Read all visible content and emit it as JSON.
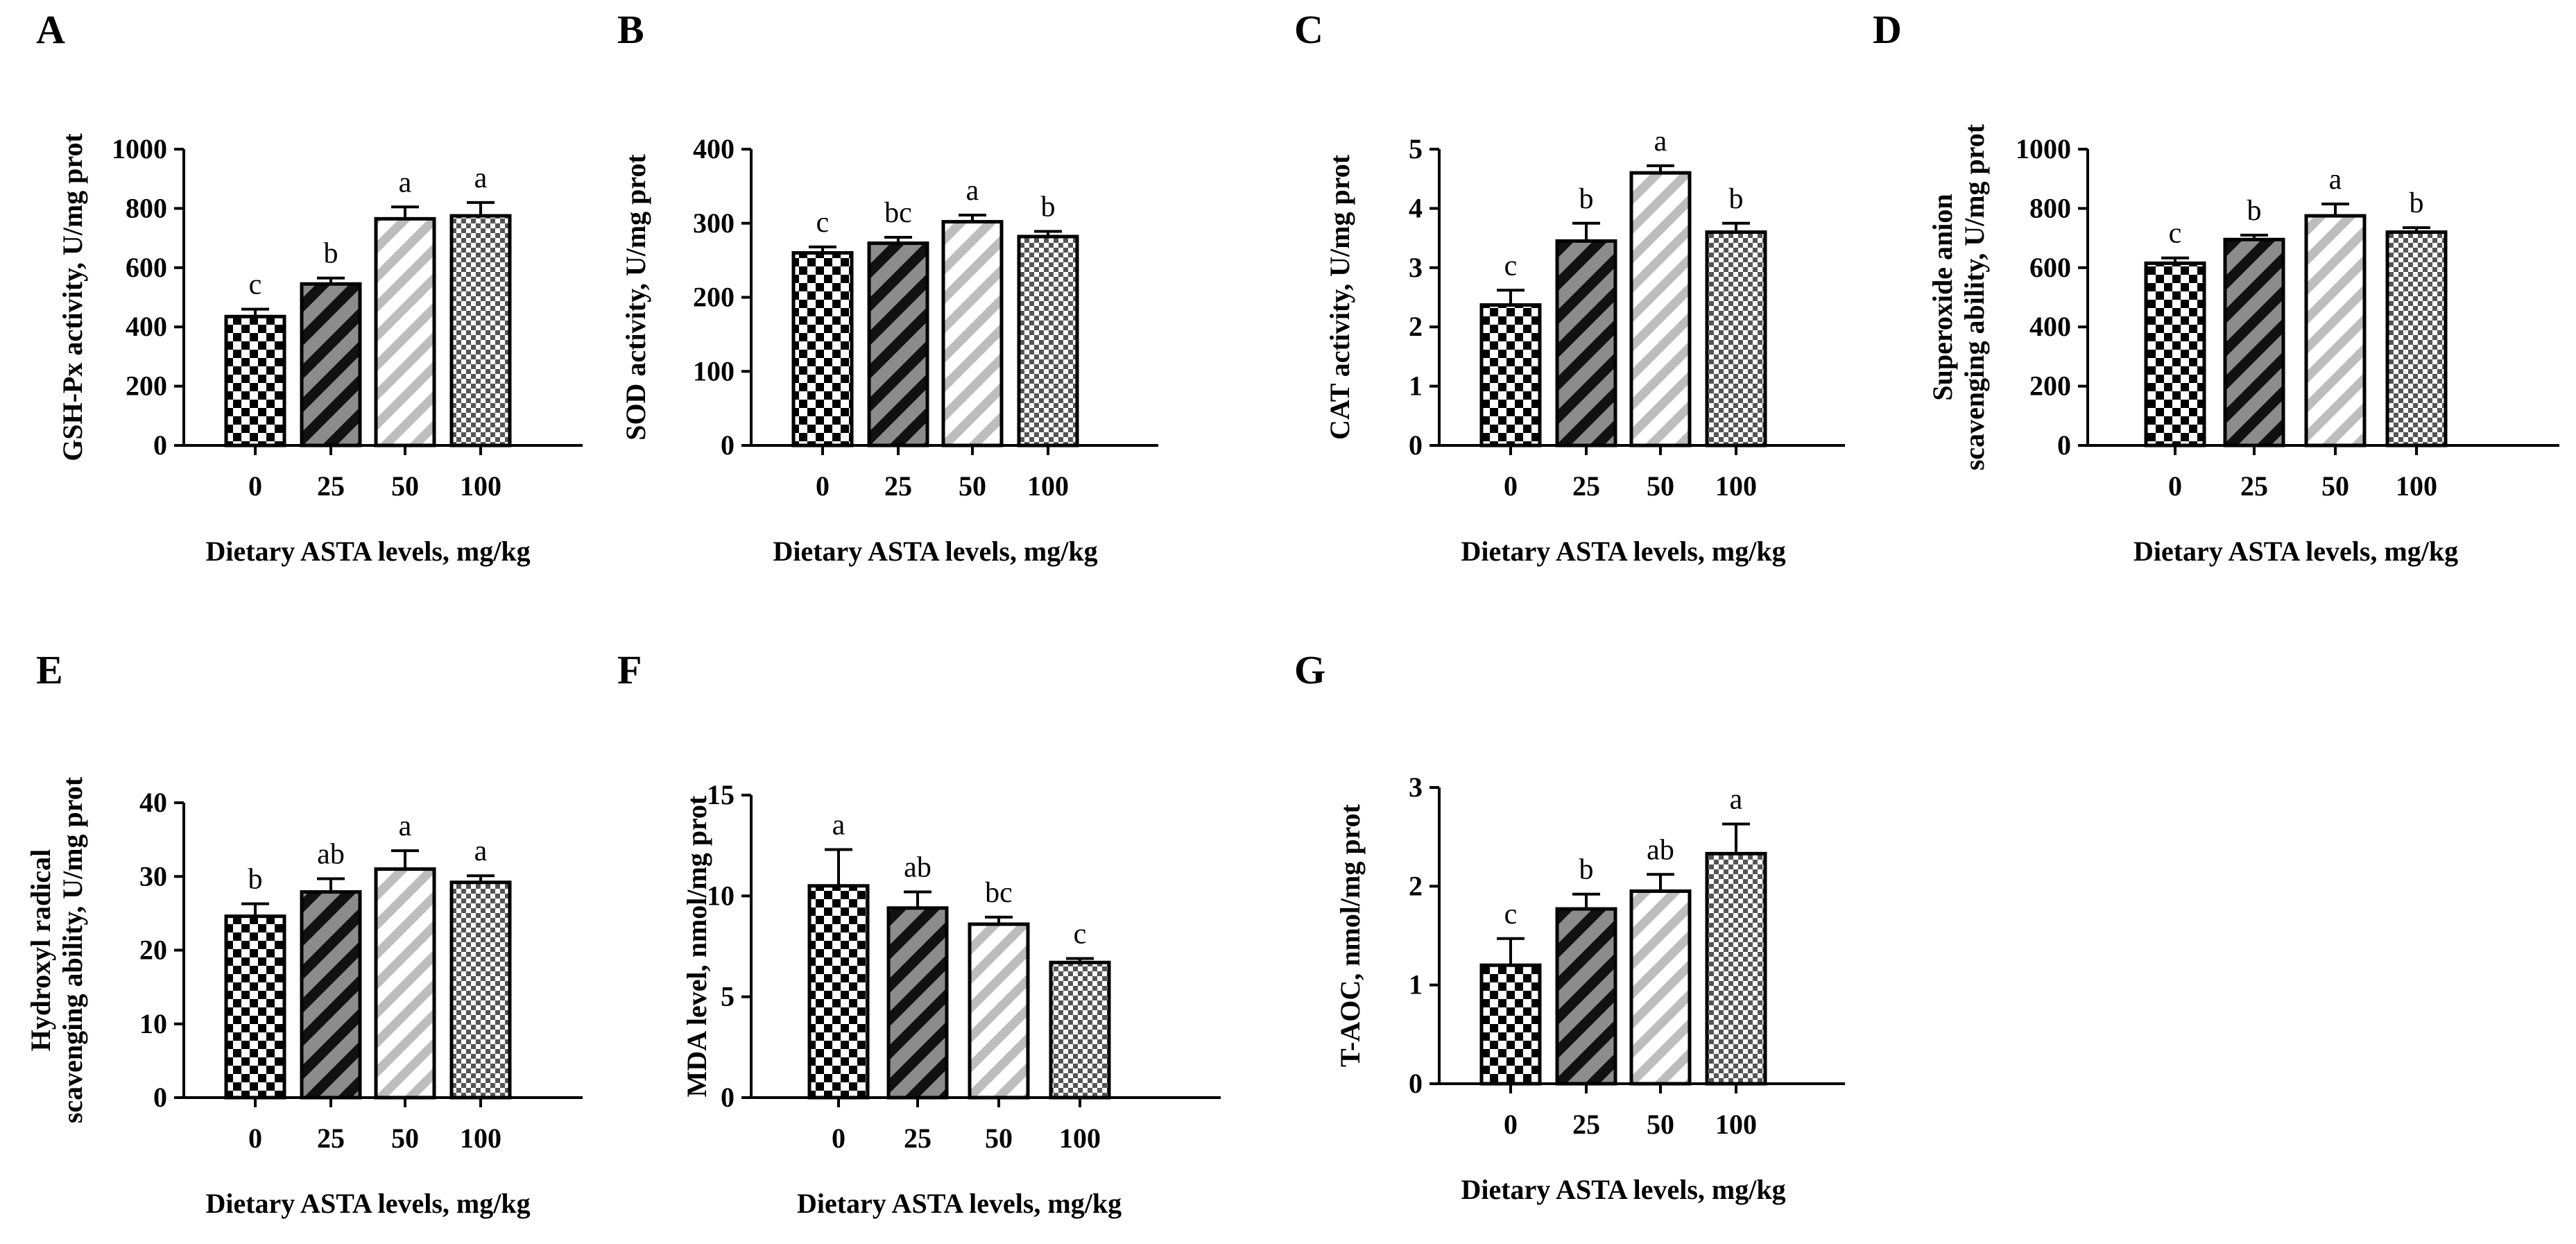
{
  "figure": {
    "xlabel": "Dietary ASTA levels, mg/kg",
    "categories": [
      "0",
      "25",
      "50",
      "100"
    ],
    "patterns": [
      "checker",
      "dark-diagonal",
      "light-diagonal",
      "fine-checker"
    ],
    "colors": {
      "bar_outline": "#000000",
      "dark_stripe_fill": "#8c8c8c",
      "light_stripe_fill": "#bdbdbd",
      "checker_light": "#ffffff"
    }
  },
  "chart_data": [
    {
      "panel": "A",
      "type": "bar",
      "ylabel": [
        "GSH-Px activity, U/mg prot"
      ],
      "xlabel": "Dietary ASTA levels, mg/kg",
      "categories": [
        "0",
        "25",
        "50",
        "100"
      ],
      "values": [
        435,
        545,
        765,
        775
      ],
      "errors": [
        25,
        20,
        40,
        45
      ],
      "significance": [
        "c",
        "b",
        "a",
        "a"
      ],
      "ylim": [
        0,
        1000
      ],
      "yticks": [
        0,
        200,
        400,
        600,
        800,
        1000
      ]
    },
    {
      "panel": "B",
      "type": "bar",
      "ylabel": [
        "SOD activity, U/mg prot"
      ],
      "xlabel": "Dietary ASTA levels, mg/kg",
      "categories": [
        "0",
        "25",
        "50",
        "100"
      ],
      "values": [
        260,
        273,
        302,
        282
      ],
      "errors": [
        8,
        8,
        9,
        7
      ],
      "significance": [
        "c",
        "bc",
        "a",
        "b"
      ],
      "ylim": [
        0,
        400
      ],
      "yticks": [
        0,
        100,
        200,
        300,
        400
      ]
    },
    {
      "panel": "C",
      "type": "bar",
      "ylabel": [
        "CAT activity, U/mg prot"
      ],
      "xlabel": "Dietary ASTA levels, mg/kg",
      "categories": [
        "0",
        "25",
        "50",
        "100"
      ],
      "values": [
        2.37,
        3.45,
        4.6,
        3.6
      ],
      "errors": [
        0.25,
        0.3,
        0.12,
        0.15
      ],
      "significance": [
        "c",
        "b",
        "a",
        "b"
      ],
      "ylim": [
        0,
        5
      ],
      "yticks": [
        0,
        1,
        2,
        3,
        4,
        5
      ]
    },
    {
      "panel": "D",
      "type": "bar",
      "ylabel": [
        "Superoxide anion",
        "scavenging ability, U/mg prot"
      ],
      "xlabel": "Dietary ASTA levels, mg/kg",
      "categories": [
        "0",
        "25",
        "50",
        "100"
      ],
      "values": [
        615,
        695,
        775,
        720
      ],
      "errors": [
        18,
        15,
        40,
        15
      ],
      "significance": [
        "c",
        "b",
        "a",
        "b"
      ],
      "ylim": [
        0,
        1000
      ],
      "yticks": [
        0,
        200,
        400,
        600,
        800,
        1000
      ]
    },
    {
      "panel": "E",
      "type": "bar",
      "ylabel": [
        "Hydroxyl radical",
        "scavenging ability, U/mg prot"
      ],
      "xlabel": "Dietary ASTA levels, mg/kg",
      "categories": [
        "0",
        "25",
        "50",
        "100"
      ],
      "values": [
        24.6,
        27.9,
        31.0,
        29.2
      ],
      "errors": [
        1.7,
        1.8,
        2.5,
        0.9
      ],
      "significance": [
        "b",
        "ab",
        "a",
        "a"
      ],
      "ylim": [
        0,
        40
      ],
      "yticks": [
        0,
        10,
        20,
        30,
        40
      ]
    },
    {
      "panel": "F",
      "type": "bar",
      "ylabel": [
        "MDA level, nmol/mg prot"
      ],
      "xlabel": "Dietary ASTA levels, mg/kg",
      "categories": [
        "0",
        "25",
        "50",
        "100"
      ],
      "values": [
        10.5,
        9.4,
        8.6,
        6.7
      ],
      "errors": [
        1.8,
        0.8,
        0.35,
        0.2
      ],
      "significance": [
        "a",
        "ab",
        "bc",
        "c"
      ],
      "ylim": [
        0,
        15
      ],
      "yticks": [
        0,
        5,
        10,
        15
      ]
    },
    {
      "panel": "G",
      "type": "bar",
      "ylabel": [
        "T-AOC, nmol/mg prot"
      ],
      "xlabel": "Dietary ASTA levels, mg/kg",
      "categories": [
        "0",
        "25",
        "50",
        "100"
      ],
      "values": [
        1.2,
        1.77,
        1.95,
        2.33
      ],
      "errors": [
        0.27,
        0.15,
        0.17,
        0.3
      ],
      "significance": [
        "c",
        "b",
        "ab",
        "a"
      ],
      "ylim": [
        0,
        3
      ],
      "yticks": [
        0,
        1,
        2,
        3
      ]
    }
  ]
}
